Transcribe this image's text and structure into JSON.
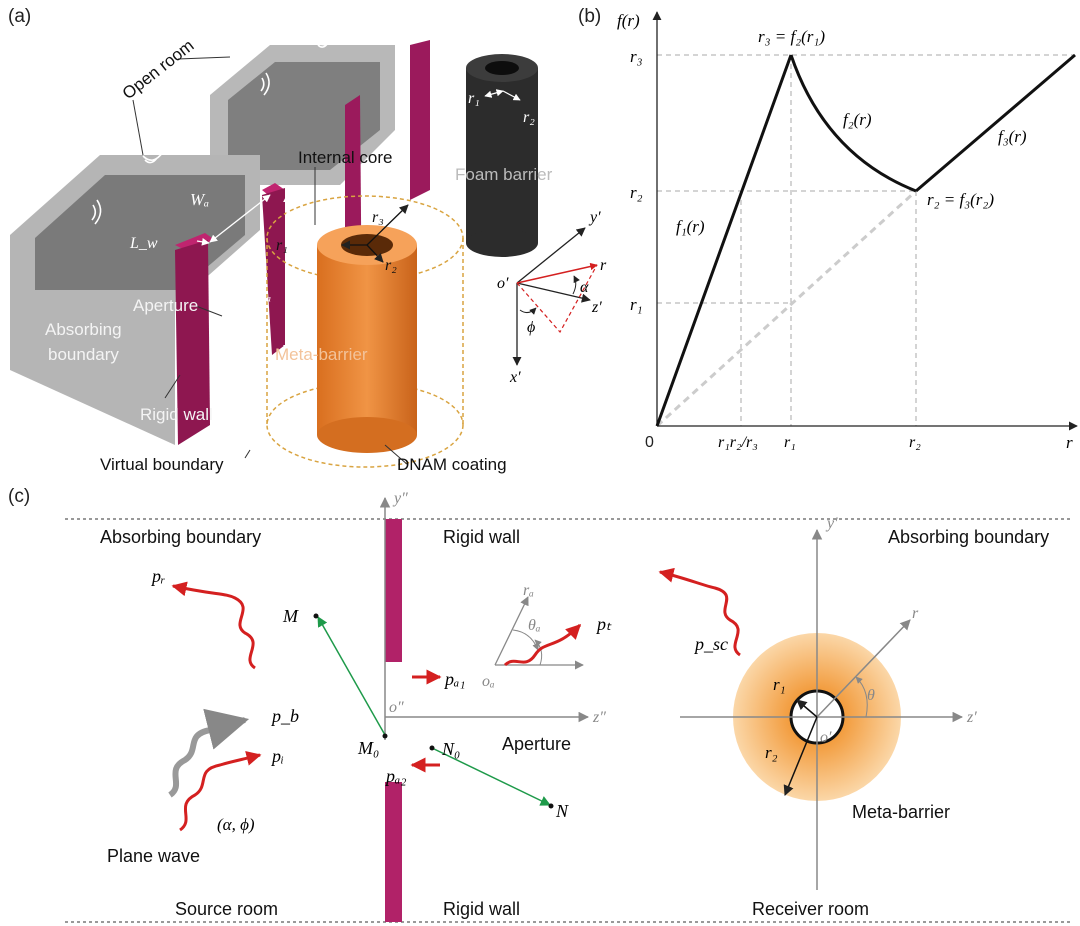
{
  "panel_labels": {
    "a": "(a)",
    "b": "(b)",
    "c": "(c)"
  },
  "panel_a": {
    "open_room": "Open room",
    "internal_core": "Internal core",
    "foam_barrier": "Foam barrier",
    "absorbing_boundary_1": "Absorbing",
    "absorbing_boundary_2": "boundary",
    "aperture": "Aperture",
    "rigid_wall": "Rigid wall",
    "meta_barrier": "Meta-barrier",
    "virtual_boundary": "Virtual boundary",
    "dnam_coating": "DNAM coating",
    "W_a": "Wₐ",
    "L_w": "L_w",
    "D_a": "Dₐ",
    "r1": "r₁",
    "r2": "r₂",
    "r3": "r₃",
    "axis_y": "y′",
    "axis_x": "x′",
    "axis_z": "z′",
    "axis_r": "r",
    "origin": "o′",
    "alpha": "α",
    "phi": "ϕ",
    "colors": {
      "wall": "#9b1a5c",
      "room": "#a9a9a9",
      "meta_barrier": "#e57f2c",
      "foam": "#2a2a2a",
      "virtual_boundary": "#d9a441",
      "incidence": "#d42020"
    }
  },
  "panel_b": {
    "y_axis_label": "f(r)",
    "x_axis_label": "r",
    "origin": "0",
    "y_ticks": [
      "r₃",
      "r₂",
      "r₁"
    ],
    "x_ticks": [
      "r₁r₂/r₃",
      "r₁",
      "r₂"
    ],
    "annot_peak": "r₃ = f₂(r₁)",
    "annot_valley": "r₂ = f₃(r₂)",
    "f1": "f₁(r)",
    "f2": "f₂(r)",
    "f3": "f₃(r)"
  },
  "panel_c": {
    "absorbing_boundary_left": "Absorbing boundary",
    "absorbing_boundary_right": "Absorbing boundary",
    "rigid_wall_top": "Rigid wall",
    "rigid_wall_bottom": "Rigid wall",
    "aperture": "Aperture",
    "plane_wave": "Plane wave",
    "angles": "(α, ϕ)",
    "source_room": "Source room",
    "receiver_room": "Receiver room",
    "meta_barrier": "Meta-barrier",
    "p_r": "pᵣ",
    "p_b": "p_b",
    "p_i": "pᵢ",
    "p_a1": "pₐ₁",
    "p_a2": "pₐ₂",
    "p_t": "pₜ",
    "p_sc": "p_sc",
    "M": "M",
    "M0": "M₀",
    "N": "N",
    "N0": "N₀",
    "o_pp": "o″",
    "y_pp": "y″",
    "z_pp": "z″",
    "o_a": "oₐ",
    "r_a": "rₐ",
    "theta_a": "θₐ",
    "y_p": "y′",
    "z_p": "z′",
    "o_p": "o′",
    "r": "r",
    "theta": "θ",
    "r1": "r₁",
    "r2": "r₂"
  }
}
